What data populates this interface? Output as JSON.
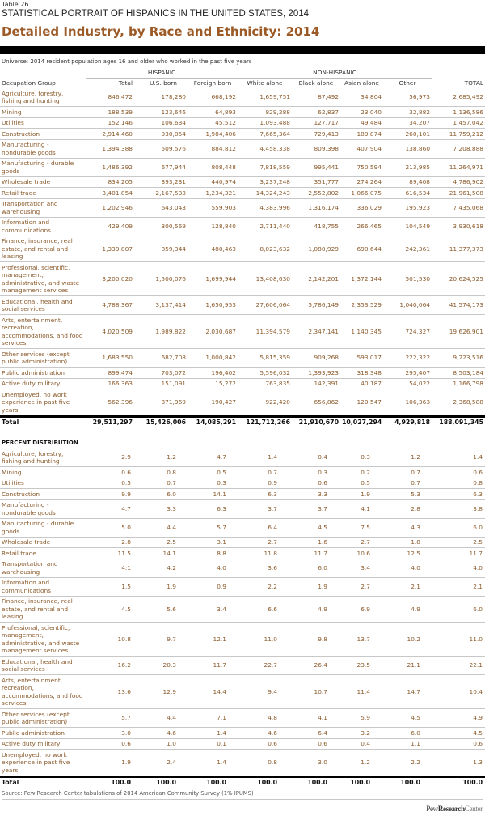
{
  "header": {
    "table_number": "Table 26",
    "supertitle": "STATISTICAL PORTRAIT OF HISPANICS IN THE UNITED STATES, 2014",
    "title": "Detailed Industry, by Race and Ethnicity: 2014",
    "universe": "Universe: 2014 resident population ages 16 and older who worked in the past five years"
  },
  "columns": {
    "row_header": "Occupation Group",
    "group_hispanic": "HISPANIC",
    "group_nonhispanic": "NON-HISPANIC",
    "labels": [
      "Total",
      "U.S. born",
      "Foreign born",
      "White alone",
      "Black alone",
      "Asian alone",
      "Other",
      "TOTAL"
    ]
  },
  "counts": {
    "rows": [
      {
        "label": "Agriculture, forestry, fishing and hunting",
        "values": [
          "846,472",
          "178,280",
          "668,192",
          "1,659,751",
          "87,492",
          "34,804",
          "56,973",
          "2,685,492"
        ]
      },
      {
        "label": "Mining",
        "values": [
          "188,539",
          "123,646",
          "64,893",
          "829,288",
          "62,837",
          "23,040",
          "32,882",
          "1,136,586"
        ]
      },
      {
        "label": "Utilities",
        "values": [
          "152,146",
          "106,634",
          "45,512",
          "1,093,488",
          "127,717",
          "49,484",
          "34,207",
          "1,457,042"
        ]
      },
      {
        "label": "Construction",
        "values": [
          "2,914,460",
          "930,054",
          "1,984,406",
          "7,665,364",
          "729,413",
          "189,874",
          "260,101",
          "11,759,212"
        ]
      },
      {
        "label": "Manufacturing - nondurable goods",
        "values": [
          "1,394,388",
          "509,576",
          "884,812",
          "4,458,338",
          "809,398",
          "407,904",
          "138,860",
          "7,208,888"
        ]
      },
      {
        "label": "Manufacturing - durable goods",
        "values": [
          "1,486,392",
          "677,944",
          "808,448",
          "7,818,559",
          "995,441",
          "750,594",
          "213,985",
          "11,264,971"
        ]
      },
      {
        "label": "Wholesale trade",
        "values": [
          "834,205",
          "393,231",
          "440,974",
          "3,237,248",
          "351,777",
          "274,264",
          "89,408",
          "4,786,902"
        ]
      },
      {
        "label": "Retail trade",
        "values": [
          "3,401,854",
          "2,167,533",
          "1,234,321",
          "14,324,243",
          "2,552,802",
          "1,066,075",
          "616,534",
          "21,961,508"
        ]
      },
      {
        "label": "Transportation and warehousing",
        "values": [
          "1,202,946",
          "643,043",
          "559,903",
          "4,383,996",
          "1,316,174",
          "336,029",
          "195,923",
          "7,435,068"
        ]
      },
      {
        "label": "Information and communications",
        "values": [
          "429,409",
          "300,569",
          "128,840",
          "2,711,440",
          "418,755",
          "266,465",
          "104,549",
          "3,930,618"
        ]
      },
      {
        "label": "Finance, insurance, real estate, and rental and leasing",
        "values": [
          "1,339,807",
          "859,344",
          "480,463",
          "8,023,632",
          "1,080,929",
          "690,644",
          "242,361",
          "11,377,373"
        ]
      },
      {
        "label": "Professional, scientific, management, administrative, and waste management services",
        "values": [
          "3,200,020",
          "1,500,076",
          "1,699,944",
          "13,408,630",
          "2,142,201",
          "1,372,144",
          "501,530",
          "20,624,525"
        ]
      },
      {
        "label": "Educational, health and social services",
        "values": [
          "4,788,367",
          "3,137,414",
          "1,650,953",
          "27,606,064",
          "5,786,149",
          "2,353,529",
          "1,040,064",
          "41,574,173"
        ]
      },
      {
        "label": "Arts, entertainment, recreation, accommodations, and food services",
        "values": [
          "4,020,509",
          "1,989,822",
          "2,030,687",
          "11,394,579",
          "2,347,141",
          "1,140,345",
          "724,327",
          "19,626,901"
        ]
      },
      {
        "label": "Other services (except public administration)",
        "values": [
          "1,683,550",
          "682,708",
          "1,000,842",
          "5,815,359",
          "909,268",
          "593,017",
          "222,322",
          "9,223,516"
        ]
      },
      {
        "label": "Public administration",
        "values": [
          "899,474",
          "703,072",
          "196,402",
          "5,596,032",
          "1,393,923",
          "318,348",
          "295,407",
          "8,503,184"
        ]
      },
      {
        "label": "Active duty military",
        "values": [
          "166,363",
          "151,091",
          "15,272",
          "763,835",
          "142,391",
          "40,187",
          "54,022",
          "1,166,798"
        ]
      },
      {
        "label": "Unemployed, no work experience in past five years",
        "values": [
          "562,396",
          "371,969",
          "190,427",
          "922,420",
          "656,862",
          "120,547",
          "106,363",
          "2,368,588"
        ]
      }
    ],
    "total": {
      "label": "Total",
      "values": [
        "29,511,297",
        "15,426,006",
        "14,085,291",
        "121,712,266",
        "21,910,670",
        "10,027,294",
        "4,929,818",
        "188,091,345"
      ]
    }
  },
  "percent": {
    "heading": "PERCENT DISTRIBUTION",
    "rows": [
      {
        "label": "Agriculture, forestry, fishing and hunting",
        "values": [
          "2.9",
          "1.2",
          "4.7",
          "1.4",
          "0.4",
          "0.3",
          "1.2",
          "1.4"
        ]
      },
      {
        "label": "Mining",
        "values": [
          "0.6",
          "0.8",
          "0.5",
          "0.7",
          "0.3",
          "0.2",
          "0.7",
          "0.6"
        ]
      },
      {
        "label": "Utilities",
        "values": [
          "0.5",
          "0.7",
          "0.3",
          "0.9",
          "0.6",
          "0.5",
          "0.7",
          "0.8"
        ]
      },
      {
        "label": "Construction",
        "values": [
          "9.9",
          "6.0",
          "14.1",
          "6.3",
          "3.3",
          "1.9",
          "5.3",
          "6.3"
        ]
      },
      {
        "label": "Manufacturing - nondurable goods",
        "values": [
          "4.7",
          "3.3",
          "6.3",
          "3.7",
          "3.7",
          "4.1",
          "2.8",
          "3.8"
        ]
      },
      {
        "label": "Manufacturing - durable goods",
        "values": [
          "5.0",
          "4.4",
          "5.7",
          "6.4",
          "4.5",
          "7.5",
          "4.3",
          "6.0"
        ]
      },
      {
        "label": "Wholesale trade",
        "values": [
          "2.8",
          "2.5",
          "3.1",
          "2.7",
          "1.6",
          "2.7",
          "1.8",
          "2.5"
        ]
      },
      {
        "label": "Retail trade",
        "values": [
          "11.5",
          "14.1",
          "8.8",
          "11.8",
          "11.7",
          "10.6",
          "12.5",
          "11.7"
        ]
      },
      {
        "label": "Transportation and warehousing",
        "values": [
          "4.1",
          "4.2",
          "4.0",
          "3.6",
          "6.0",
          "3.4",
          "4.0",
          "4.0"
        ]
      },
      {
        "label": "Information and communications",
        "values": [
          "1.5",
          "1.9",
          "0.9",
          "2.2",
          "1.9",
          "2.7",
          "2.1",
          "2.1"
        ]
      },
      {
        "label": "Finance, insurance, real estate, and rental and leasing",
        "values": [
          "4.5",
          "5.6",
          "3.4",
          "6.6",
          "4.9",
          "6.9",
          "4.9",
          "6.0"
        ]
      },
      {
        "label": "Professional, scientific, management, administrative, and waste management services",
        "values": [
          "10.8",
          "9.7",
          "12.1",
          "11.0",
          "9.8",
          "13.7",
          "10.2",
          "11.0"
        ]
      },
      {
        "label": "Educational, health and social services",
        "values": [
          "16.2",
          "20.3",
          "11.7",
          "22.7",
          "26.4",
          "23.5",
          "21.1",
          "22.1"
        ]
      },
      {
        "label": "Arts, entertainment, recreation, accommodations, and food services",
        "values": [
          "13.6",
          "12.9",
          "14.4",
          "9.4",
          "10.7",
          "11.4",
          "14.7",
          "10.4"
        ]
      },
      {
        "label": "Other services (except public administration)",
        "values": [
          "5.7",
          "4.4",
          "7.1",
          "4.8",
          "4.1",
          "5.9",
          "4.5",
          "4.9"
        ]
      },
      {
        "label": "Public administration",
        "values": [
          "3.0",
          "4.6",
          "1.4",
          "4.6",
          "6.4",
          "3.2",
          "6.0",
          "4.5"
        ]
      },
      {
        "label": "Active duty military",
        "values": [
          "0.6",
          "1.0",
          "0.1",
          "0.6",
          "0.6",
          "0.4",
          "1.1",
          "0.6"
        ]
      },
      {
        "label": "Unemployed, no work experience in past five years",
        "values": [
          "1.9",
          "2.4",
          "1.4",
          "0.8",
          "3.0",
          "1.2",
          "2.2",
          "1.3"
        ]
      }
    ],
    "total": {
      "label": "Total",
      "values": [
        "100.0",
        "100.0",
        "100.0",
        "100.0",
        "100.0",
        "100.0",
        "100.0",
        "100.0"
      ]
    }
  },
  "footer": {
    "source": "Source: Pew Research Center tabulations of 2014 American Community Survey (1% IPUMS)",
    "logo": "PewResearchCenter"
  },
  "colors": {
    "text": "#8a5a2b",
    "title": "#9c5a26",
    "separator": "#c8c8c8"
  }
}
